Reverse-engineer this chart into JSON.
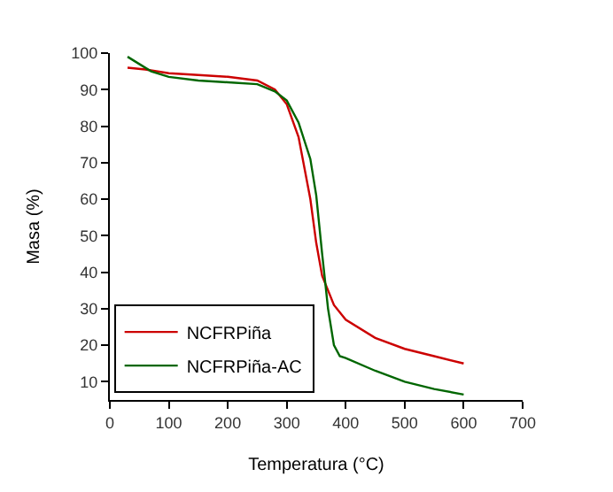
{
  "chart_data": {
    "type": "line",
    "xlabel": "Temperatura (°C)",
    "ylabel": "Masa (%)",
    "xlim": [
      0,
      700
    ],
    "xticks": [
      0,
      100,
      200,
      300,
      400,
      500,
      600,
      700
    ],
    "ylim": [
      5,
      100
    ],
    "yticks": [
      10,
      20,
      30,
      40,
      50,
      60,
      70,
      80,
      90,
      100
    ],
    "legend": "bottom left",
    "marker": "none",
    "line_style": "solid",
    "series": [
      {
        "name": "NCFRPiña",
        "color": "#cc0000",
        "x": [
          30,
          60,
          100,
          150,
          200,
          250,
          280,
          300,
          320,
          340,
          350,
          360,
          380,
          400,
          450,
          500,
          550,
          600
        ],
        "values": [
          96,
          95.5,
          94.5,
          94,
          93.5,
          92.5,
          90,
          86,
          77,
          60,
          48,
          39,
          31,
          27,
          22,
          19,
          17,
          15
        ]
      },
      {
        "name": "NCFRPiña-AC",
        "color": "#006600",
        "x": [
          30,
          50,
          70,
          100,
          150,
          200,
          250,
          280,
          300,
          320,
          340,
          350,
          360,
          370,
          380,
          390,
          400,
          450,
          500,
          550,
          600
        ],
        "values": [
          99,
          97,
          95,
          93.5,
          92.5,
          92,
          91.5,
          89.5,
          87,
          81,
          71,
          61,
          45,
          30,
          20,
          17,
          16.5,
          13,
          10,
          8,
          6.5
        ]
      }
    ]
  }
}
